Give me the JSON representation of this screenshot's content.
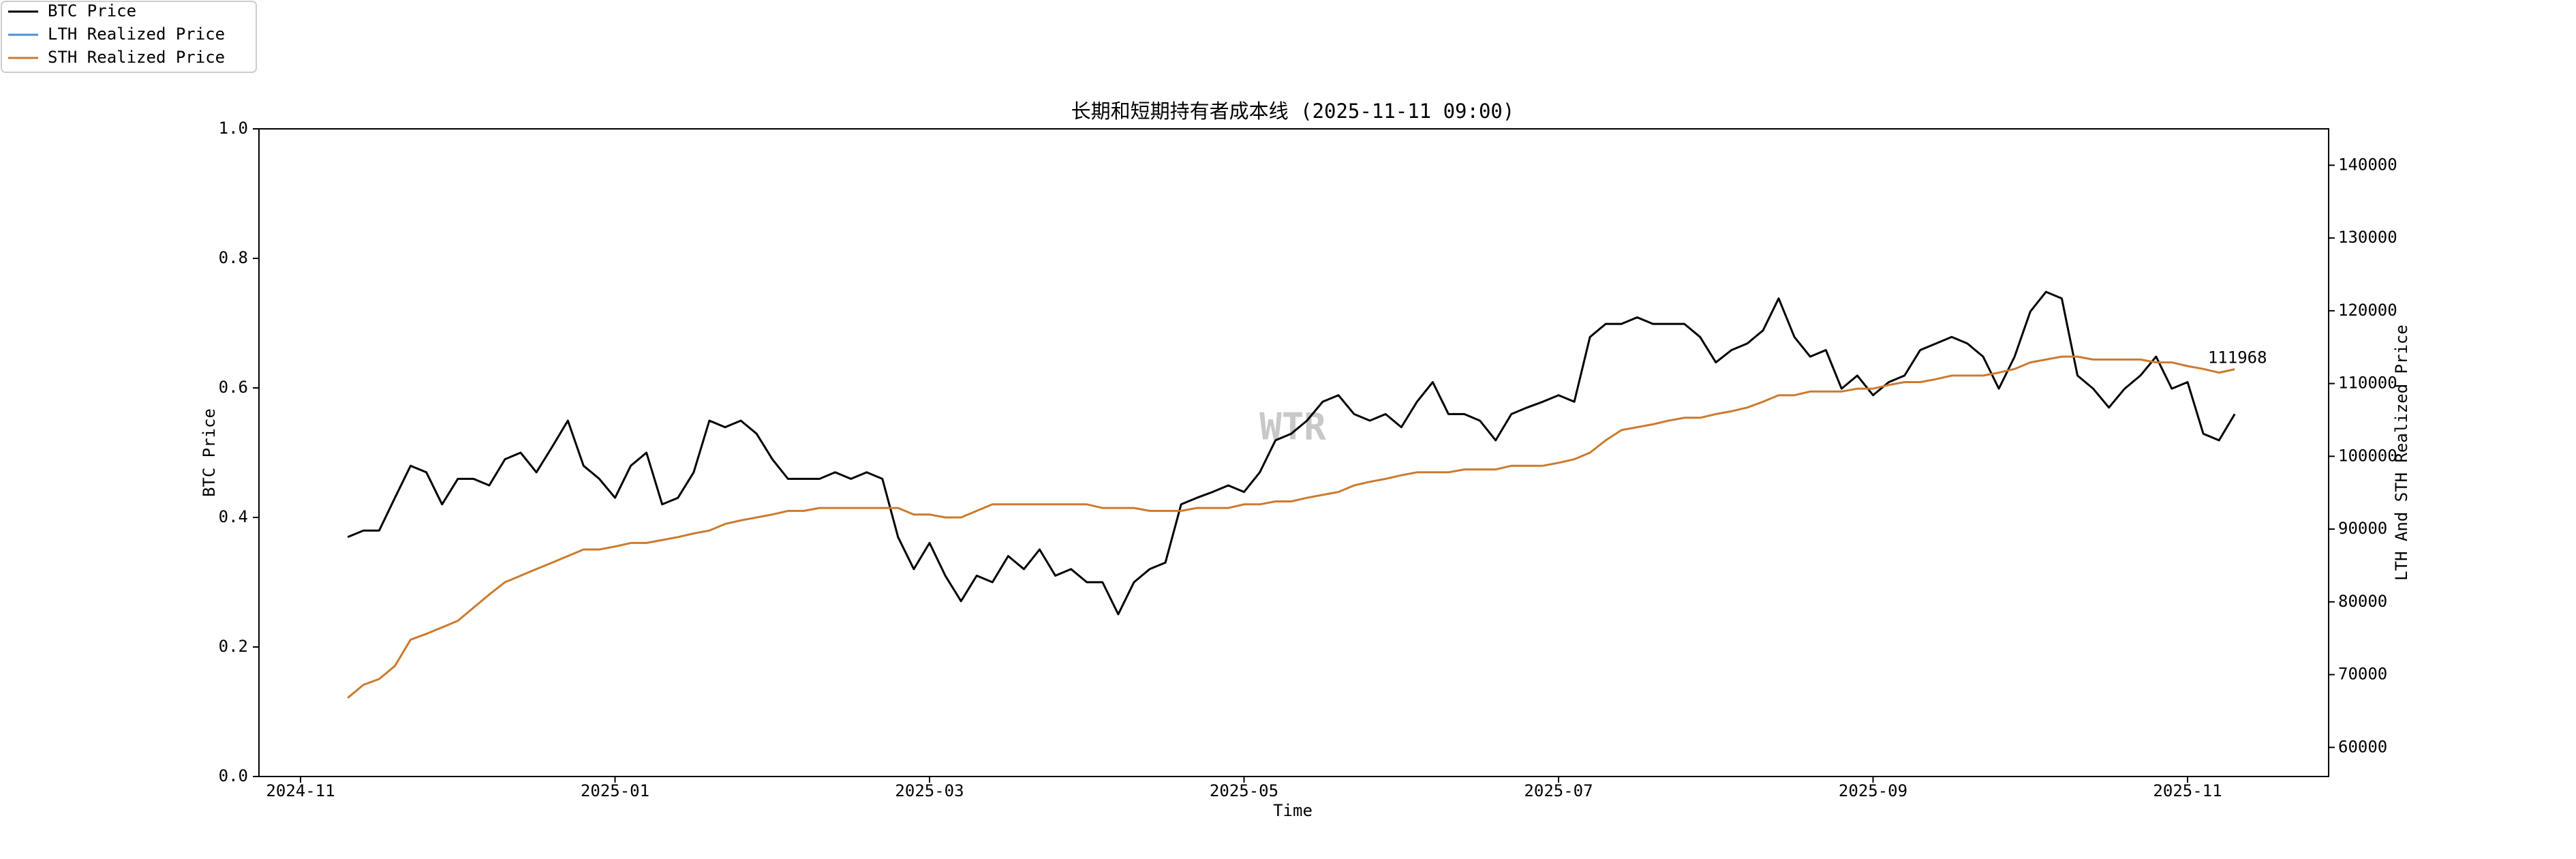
{
  "chart_data": {
    "type": "line",
    "title": "长期和短期持有者成本线 (2025-11-11 09:00)",
    "watermark": "WTR",
    "xlabel": "Time",
    "ylabel": "BTC Price",
    "y2label": "LTH And STH Realized Price",
    "annotations": [
      "111968"
    ],
    "legend": "upper left",
    "grid": false,
    "ylim": [
      0,
      1
    ],
    "yticks": [
      {
        "value": 0,
        "label": "0.0"
      },
      0.2,
      0.4,
      0.6,
      0.8,
      {
        "value": 1,
        "label": "1.0"
      }
    ],
    "y2lim": [
      56000,
      145000
    ],
    "y2ticks": [
      60000,
      70000,
      80000,
      90000,
      100000,
      110000,
      120000,
      130000,
      140000
    ],
    "categories": [
      "2024-11",
      null,
      null,
      null,
      null,
      null,
      null,
      null,
      null,
      null,
      null,
      null,
      null,
      null,
      null,
      null,
      null,
      null,
      null,
      null,
      "2025-01",
      null,
      null,
      null,
      null,
      null,
      null,
      null,
      null,
      null,
      null,
      null,
      null,
      null,
      null,
      null,
      null,
      null,
      null,
      null,
      "2025-03",
      null,
      null,
      null,
      null,
      null,
      null,
      null,
      null,
      null,
      null,
      null,
      null,
      null,
      null,
      null,
      null,
      null,
      null,
      null,
      "2025-05",
      null,
      null,
      null,
      null,
      null,
      null,
      null,
      null,
      null,
      null,
      null,
      null,
      null,
      null,
      null,
      null,
      null,
      null,
      null,
      "2025-07",
      null,
      null,
      null,
      null,
      null,
      null,
      null,
      null,
      null,
      null,
      null,
      null,
      null,
      null,
      null,
      null,
      null,
      null,
      null,
      "2025-09",
      null,
      null,
      null,
      null,
      null,
      null,
      null,
      null,
      null,
      null,
      null,
      null,
      null,
      null,
      null,
      null,
      null,
      null,
      null,
      "2025-11",
      null,
      null,
      null
    ],
    "series": [
      {
        "name": "BTC Price",
        "color": "#000000",
        "axis": "y2",
        "values": [
          null,
          null,
          null,
          88900,
          89800,
          89800,
          94300,
          98700,
          97800,
          93400,
          96900,
          96900,
          96000,
          99600,
          100500,
          97800,
          101300,
          104900,
          98700,
          96900,
          94300,
          98700,
          100500,
          93400,
          94300,
          97800,
          104900,
          104000,
          104900,
          103100,
          99600,
          96900,
          96900,
          96900,
          97800,
          96900,
          97800,
          96900,
          88900,
          84500,
          88100,
          83600,
          80100,
          83600,
          82700,
          86300,
          84500,
          87200,
          83600,
          84500,
          82700,
          82700,
          78300,
          82700,
          84500,
          85400,
          93400,
          94300,
          95100,
          96000,
          95100,
          97800,
          102200,
          103100,
          104900,
          107500,
          108400,
          105800,
          104900,
          105800,
          104000,
          107500,
          110200,
          105800,
          105800,
          104900,
          102200,
          105800,
          106700,
          107500,
          108400,
          107500,
          116400,
          118200,
          118200,
          119100,
          118200,
          118200,
          118200,
          116400,
          112900,
          114600,
          115500,
          117300,
          121700,
          116400,
          113700,
          114600,
          109300,
          111100,
          108400,
          110200,
          111100,
          114600,
          115500,
          116400,
          115500,
          113700,
          109300,
          113700,
          119900,
          122600,
          121700,
          111100,
          109300,
          106700,
          109300,
          111100,
          113700,
          109300,
          110200,
          103100,
          102200,
          105800
        ]
      },
      {
        "name": "LTH Realized Price",
        "color": "#4a8fd4",
        "axis": "y2",
        "values": [
          null,
          null,
          null,
          null,
          null,
          null,
          null,
          null,
          null,
          null,
          null,
          null,
          null,
          null,
          null,
          null,
          null,
          null,
          null,
          null,
          null,
          null,
          null,
          null,
          null,
          null,
          null,
          null,
          null,
          null,
          null,
          null,
          null,
          null,
          null,
          null,
          null,
          null,
          null,
          null,
          null,
          null,
          null,
          null,
          null,
          null,
          null,
          null,
          null,
          null,
          null,
          null,
          null,
          null,
          null,
          null,
          null,
          null,
          null,
          null,
          null,
          null,
          null,
          null,
          null,
          null,
          null,
          null,
          null,
          null,
          null,
          null,
          null,
          null,
          null,
          null,
          null,
          null,
          null,
          null,
          null,
          null,
          null,
          null,
          null,
          null,
          null,
          null,
          null,
          null,
          null,
          null,
          null,
          null,
          null,
          null,
          null,
          null,
          null,
          null,
          null,
          null,
          null,
          null,
          null,
          null,
          null,
          null,
          null,
          null,
          null,
          null,
          null,
          null,
          null,
          null,
          null,
          null,
          null,
          null,
          null,
          null,
          null,
          null
        ]
      },
      {
        "name": "STH Realized Price",
        "color": "#cc7a2e",
        "axis": "y2",
        "values": [
          null,
          null,
          null,
          66800,
          68600,
          69400,
          71200,
          74800,
          75600,
          76500,
          77400,
          79200,
          81000,
          82700,
          83600,
          84500,
          85400,
          86300,
          87200,
          87200,
          87600,
          88100,
          88100,
          88500,
          88900,
          89400,
          89800,
          90700,
          91200,
          91600,
          92000,
          92500,
          92500,
          92900,
          92900,
          92900,
          92900,
          92900,
          92900,
          92000,
          92000,
          91600,
          91600,
          92500,
          93400,
          93400,
          93400,
          93400,
          93400,
          93400,
          93400,
          92900,
          92900,
          92900,
          92500,
          92500,
          92500,
          92900,
          92900,
          92900,
          93400,
          93400,
          93800,
          93800,
          94300,
          94700,
          95100,
          96000,
          96500,
          96900,
          97400,
          97800,
          97800,
          97800,
          98200,
          98200,
          98200,
          98700,
          98700,
          98700,
          99100,
          99600,
          100500,
          102200,
          103600,
          104000,
          104400,
          104900,
          105300,
          105300,
          105800,
          106200,
          106700,
          107500,
          108400,
          108400,
          108900,
          108900,
          108900,
          109300,
          109300,
          109800,
          110200,
          110200,
          110600,
          111100,
          111100,
          111100,
          111500,
          112000,
          112900,
          113300,
          113700,
          113700,
          113300,
          113300,
          113300,
          113300,
          112900,
          112900,
          112400,
          112000,
          111500,
          111968
        ]
      }
    ]
  }
}
